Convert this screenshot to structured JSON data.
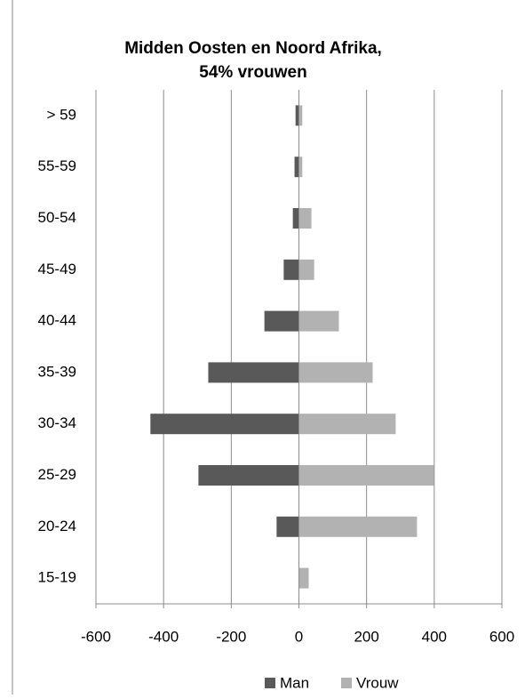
{
  "chart_data": {
    "type": "bar",
    "orientation": "horizontal",
    "title": [
      "Midden Oosten en Noord Afrika,",
      "54% vrouwen"
    ],
    "categories": [
      "> 59",
      "55-59",
      "50-54",
      "45-49",
      "40-44",
      "35-39",
      "30-34",
      "25-29",
      "20-24",
      "15-19"
    ],
    "series": [
      {
        "name": "Man",
        "color": "#595959",
        "values": [
          -10,
          -13,
          -18,
          -45,
          -102,
          -268,
          -439,
          -297,
          -66,
          0
        ]
      },
      {
        "name": "Vrouw",
        "color": "#b2b2b2",
        "values": [
          10,
          10,
          37,
          45,
          118,
          218,
          286,
          399,
          349,
          29
        ]
      }
    ],
    "xlim": [
      -600,
      600
    ],
    "xticks": [
      -600,
      -400,
      -200,
      0,
      200,
      400,
      600
    ],
    "grid": true,
    "legend": "bottom"
  }
}
